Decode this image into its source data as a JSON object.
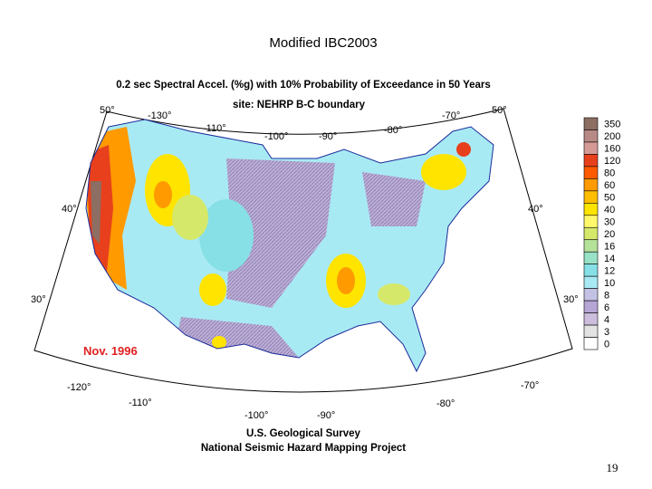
{
  "slide": {
    "title": "Modified IBC2003",
    "page_number": "19"
  },
  "map": {
    "title": "0.2 sec Spectral Accel. (%g) with 10% Probability of Exceedance in 50 Years",
    "subtitle": "site: NEHRP B-C boundary",
    "date": "Nov. 1996",
    "credit": [
      "U.S. Geological Survey",
      "National Seismic Hazard Mapping Project"
    ],
    "grid_labels": [
      "50°",
      "-130°",
      "-110°",
      "-100°",
      "-90°",
      "-80°",
      "-70°",
      "50°",
      "40°",
      "30°",
      "40°",
      "30°",
      "-120°",
      "-110°",
      "-100°",
      "-90°",
      "-80°",
      "-70°"
    ],
    "legend": [
      {
        "label": "350",
        "color": "#8c6e62"
      },
      {
        "label": "200",
        "color": "#b88a86"
      },
      {
        "label": "160",
        "color": "#d49a96"
      },
      {
        "label": "120",
        "color": "#e8401c"
      },
      {
        "label": "80",
        "color": "#ff5a00"
      },
      {
        "label": "60",
        "color": "#ff9a00"
      },
      {
        "label": "50",
        "color": "#ffbe00"
      },
      {
        "label": "40",
        "color": "#ffe400"
      },
      {
        "label": "30",
        "color": "#fff86a"
      },
      {
        "label": "20",
        "color": "#d6e86a"
      },
      {
        "label": "16",
        "color": "#b4e29a"
      },
      {
        "label": "14",
        "color": "#98e2c8"
      },
      {
        "label": "12",
        "color": "#86e0e6"
      },
      {
        "label": "10",
        "color": "#a8eaf4"
      },
      {
        "label": "8",
        "color": "#c4c2e4"
      },
      {
        "label": "6",
        "color": "#b6a6d6"
      },
      {
        "label": "4",
        "color": "#cbbddb"
      },
      {
        "label": "3",
        "color": "#e2e2e2"
      },
      {
        "label": "0",
        "color": "#ffffff"
      }
    ]
  }
}
